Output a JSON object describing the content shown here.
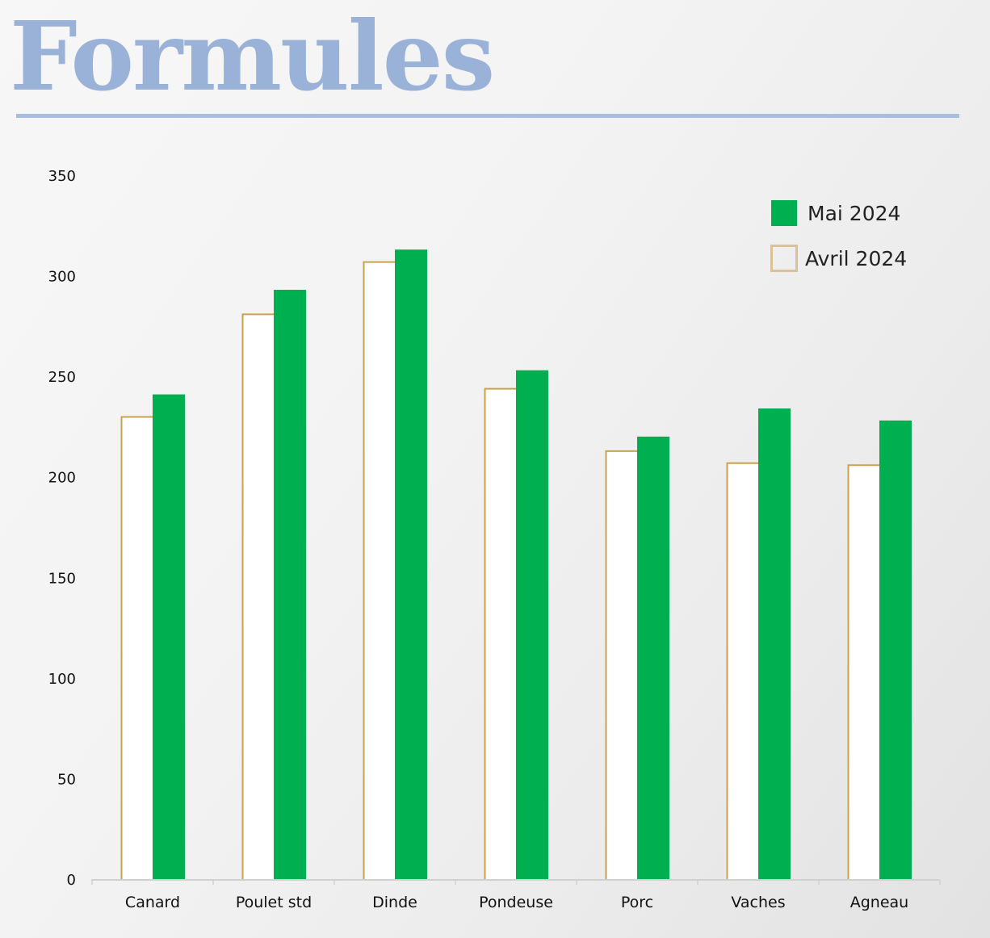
{
  "header": {
    "title": "Formules"
  },
  "colors": {
    "title": "#9ab2d8",
    "rule": "#a9bedf",
    "series_fill": "#00b050",
    "series_outline": "#c9a24e",
    "legend_outline": "#d9c29a",
    "axis": "#d0d0d0"
  },
  "chart_data": {
    "type": "bar",
    "categories": [
      "Canard",
      "Poulet std",
      "Dinde",
      "Pondeuse",
      "Porc",
      "Vaches",
      "Agneau"
    ],
    "series": [
      {
        "name": "Avril 2024",
        "style": "outline",
        "values": [
          230,
          281,
          307,
          244,
          213,
          207,
          206
        ]
      },
      {
        "name": "Mai 2024",
        "style": "filled",
        "values": [
          241,
          293,
          313,
          253,
          220,
          234,
          228
        ]
      }
    ],
    "y_ticks": [
      "0",
      "50",
      "100",
      "150",
      "200",
      "250",
      "300",
      "350"
    ],
    "ylim": [
      0,
      350
    ],
    "grid": false,
    "legend": "top-right",
    "legend_order": [
      "Mai 2024",
      "Avril 2024"
    ]
  }
}
